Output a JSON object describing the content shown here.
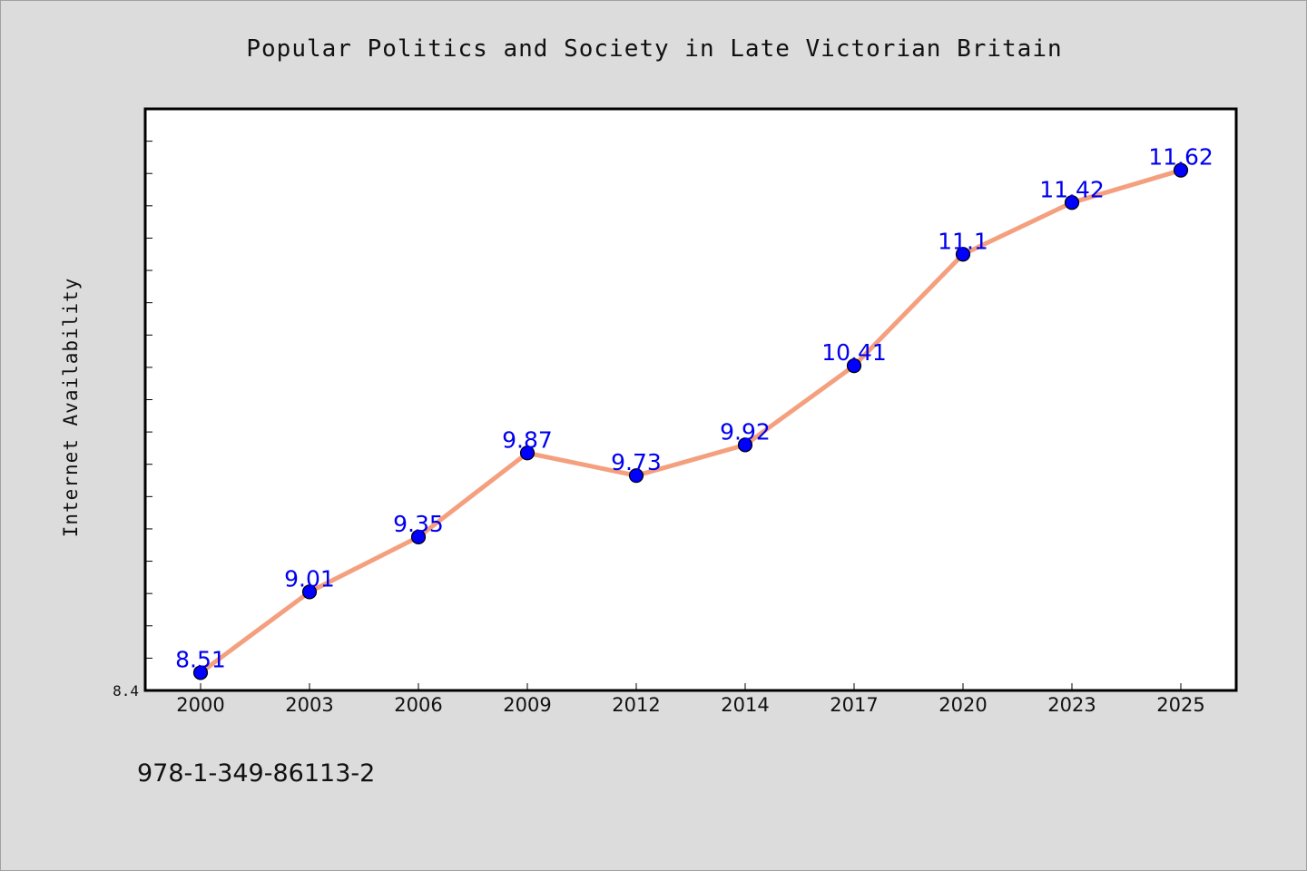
{
  "footer": {
    "isbn": "978-1-349-86113-2"
  },
  "chart_data": {
    "type": "line",
    "title": "Popular Politics and Society in Late Victorian Britain",
    "xlabel": "",
    "ylabel": "Internet Availability",
    "categories": [
      "2000",
      "2003",
      "2006",
      "2009",
      "2012",
      "2014",
      "2017",
      "2020",
      "2023",
      "2025"
    ],
    "series": [
      {
        "values": [
          8.51,
          9.01,
          9.35,
          9.87,
          9.73,
          9.92,
          10.41,
          11.1,
          11.42,
          11.62
        ],
        "labels": [
          "8.51",
          "9.01",
          "9.35",
          "9.87",
          "9.73",
          "9.92",
          "10.41",
          "11.1",
          "11.42",
          "11.62"
        ]
      }
    ],
    "ylim": [
      8.4,
      12.0
    ],
    "y_tick_labels": [
      "8.4"
    ],
    "grid": false,
    "legend": "none",
    "colors": {
      "line": "#f4a07e",
      "marker": "#0000ff",
      "marker_edge": "#000000",
      "data_label": "#0000ee",
      "plot_bg": "#ffffff",
      "page_bg": "#dcdcdc"
    }
  }
}
